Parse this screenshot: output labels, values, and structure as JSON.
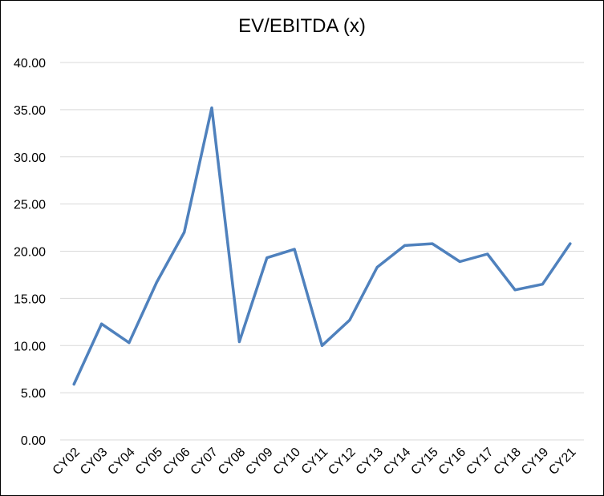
{
  "chart_data": {
    "type": "line",
    "title": "EV/EBITDA (x)",
    "xlabel": "",
    "ylabel": "",
    "categories": [
      "CY02",
      "CY03",
      "CY04",
      "CY05",
      "CY06",
      "CY07",
      "CY08",
      "CY09",
      "CY10",
      "CY11",
      "CY12",
      "CY13",
      "CY14",
      "CY15",
      "CY16",
      "CY17",
      "CY18",
      "CY19",
      "CY21"
    ],
    "series": [
      {
        "values": [
          5.9,
          12.3,
          10.3,
          16.7,
          22.0,
          35.2,
          10.4,
          19.3,
          20.2,
          10.0,
          12.7,
          18.3,
          20.6,
          20.8,
          18.9,
          19.7,
          15.9,
          16.5,
          20.8
        ]
      }
    ],
    "ylim": [
      0,
      40
    ],
    "yticks": [
      "0.00",
      "5.00",
      "10.00",
      "15.00",
      "20.00",
      "25.00",
      "30.00",
      "35.00",
      "40.00"
    ],
    "grid": true,
    "legend": "none",
    "colors": {
      "line": "#4f81bd",
      "grid": "#d9d9d9",
      "frame": "#000000"
    }
  }
}
